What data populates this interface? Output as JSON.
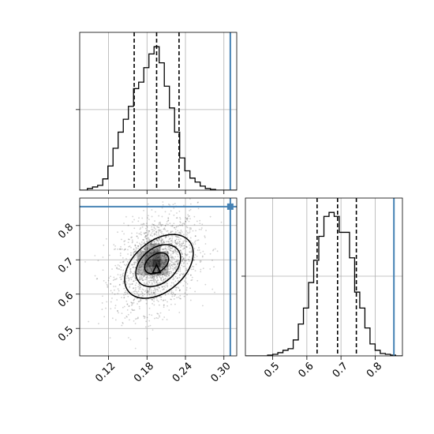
{
  "chart_data": {
    "type": "corner",
    "parameters": [
      {
        "key": "p0",
        "xlim": [
          0.075,
          0.32
        ],
        "ticks": [
          0.12,
          0.18,
          0.24,
          0.3
        ],
        "tick_labels": [
          "0.12",
          "0.18",
          "0.24",
          "0.30"
        ],
        "truth": 0.31,
        "quantiles": [
          0.16,
          0.195,
          0.23
        ],
        "histogram": {
          "bin_edges": [
            0.087,
            0.095,
            0.103,
            0.111,
            0.119,
            0.127,
            0.135,
            0.143,
            0.151,
            0.159,
            0.167,
            0.175,
            0.183,
            0.191,
            0.199,
            0.207,
            0.215,
            0.223,
            0.231,
            0.239,
            0.247,
            0.255,
            0.263,
            0.271,
            0.279,
            0.287
          ],
          "counts": [
            2,
            4,
            6,
            14,
            30,
            52,
            72,
            88,
            104,
            126,
            134,
            152,
            169,
            178,
            158,
            129,
            102,
            72,
            40,
            24,
            15,
            10,
            5,
            2,
            1
          ]
        }
      },
      {
        "key": "p1",
        "xlim": [
          0.42,
          0.88
        ],
        "ticks": [
          0.5,
          0.6,
          0.7,
          0.8
        ],
        "tick_labels": [
          "0.5",
          "0.6",
          "0.7",
          "0.8"
        ],
        "truth": 0.855,
        "quantiles": [
          0.63,
          0.69,
          0.745
        ],
        "histogram": {
          "bin_edges": [
            0.485,
            0.5,
            0.515,
            0.53,
            0.545,
            0.56,
            0.575,
            0.59,
            0.605,
            0.62,
            0.635,
            0.65,
            0.665,
            0.68,
            0.695,
            0.71,
            0.725,
            0.74,
            0.755,
            0.77,
            0.785,
            0.8,
            0.815,
            0.83,
            0.845,
            0.86
          ],
          "counts": [
            1,
            2,
            4,
            7,
            9,
            20,
            40,
            60,
            92,
            120,
            150,
            175,
            180,
            175,
            155,
            155,
            123,
            80,
            60,
            35,
            15,
            7,
            3,
            2,
            1
          ]
        }
      }
    ],
    "joint": {
      "type": "scatter+density-contours",
      "contour_levels": 4,
      "truth_point": [
        0.31,
        0.855
      ]
    },
    "grid": true,
    "legend": "none"
  }
}
